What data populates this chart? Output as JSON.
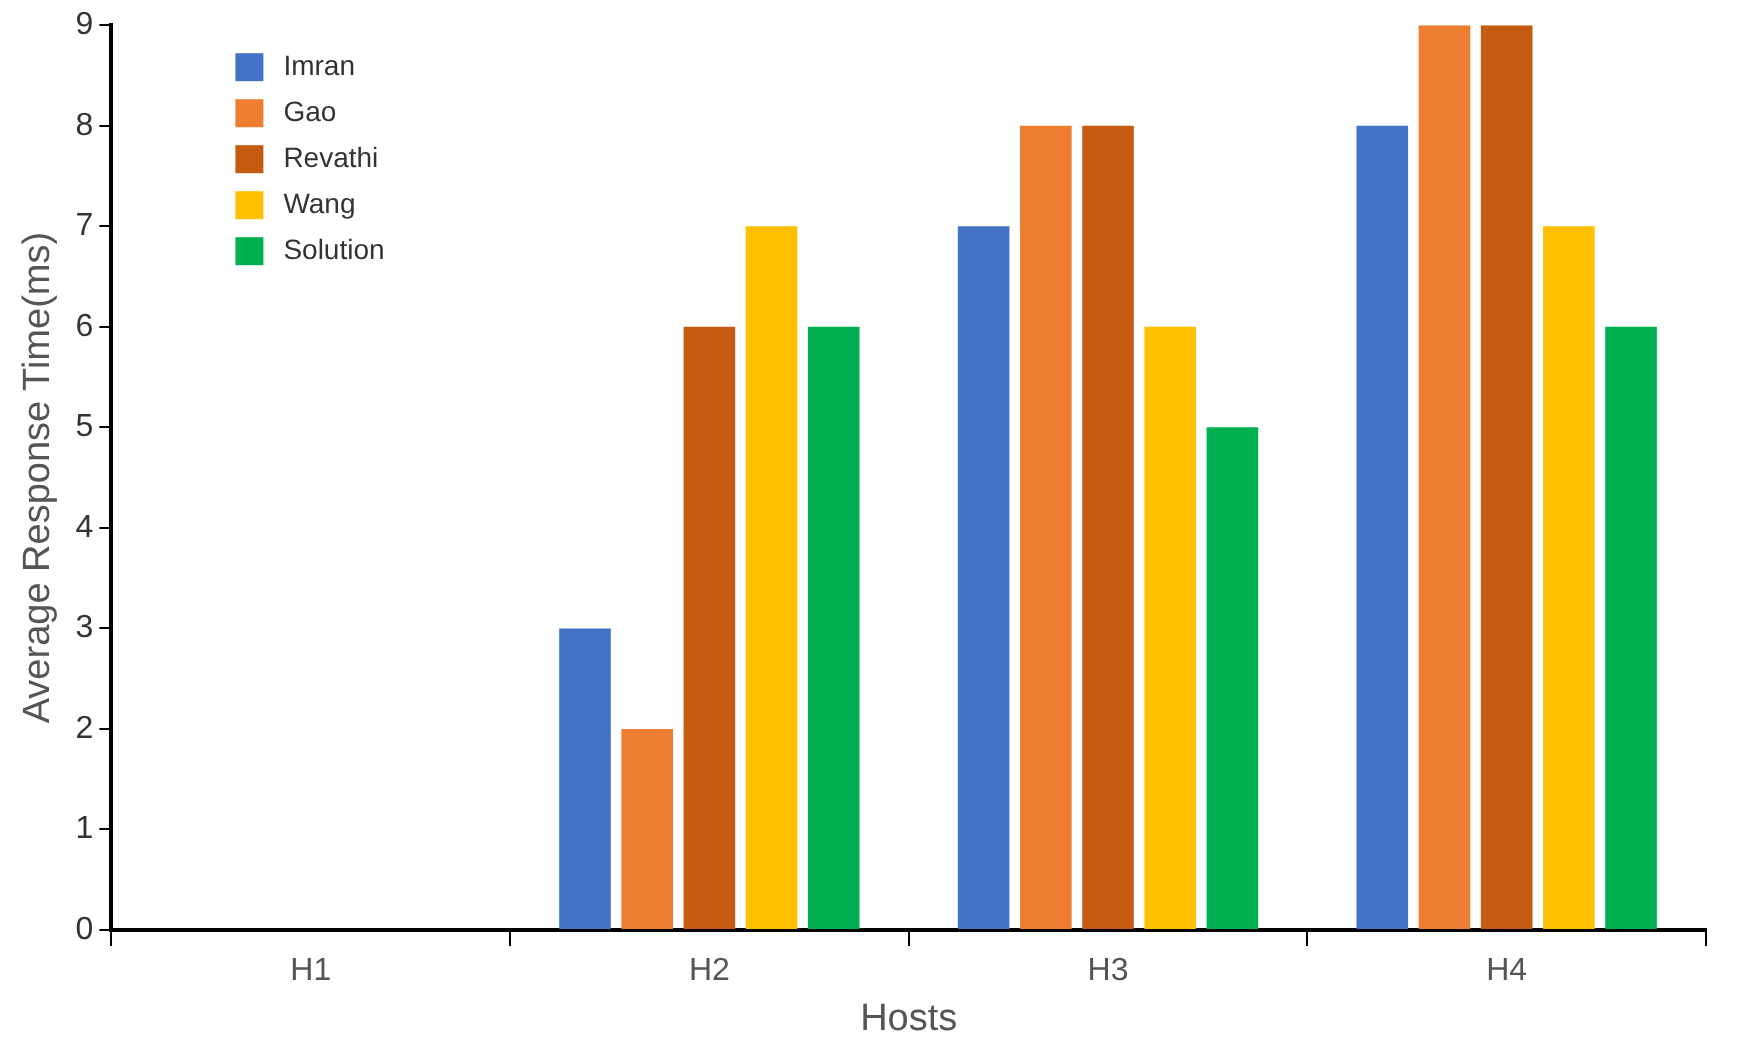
{
  "chart_data": {
    "type": "bar",
    "xlabel": "Hosts",
    "ylabel": "Average Response Time(ms)",
    "categories": [
      "H1",
      "H2",
      "H3",
      "H4"
    ],
    "series": [
      {
        "name": "Imran",
        "color": "#4472c4",
        "values": [
          0,
          3,
          7,
          8
        ]
      },
      {
        "name": "Gao",
        "color": "#ed7d31",
        "values": [
          0,
          2,
          8,
          9
        ]
      },
      {
        "name": "Revathi",
        "color": "#c55a11",
        "values": [
          0,
          6,
          8,
          9
        ]
      },
      {
        "name": "Wang",
        "color": "#ffc000",
        "values": [
          0,
          7,
          6,
          7
        ]
      },
      {
        "name": "Solution",
        "color": "#00b050",
        "values": [
          0,
          6,
          5,
          6
        ]
      }
    ],
    "ylim": [
      0,
      9
    ],
    "yticks": [
      0,
      1,
      2,
      3,
      4,
      5,
      6,
      7,
      8,
      9
    ],
    "grid": false,
    "legend": "top left"
  }
}
